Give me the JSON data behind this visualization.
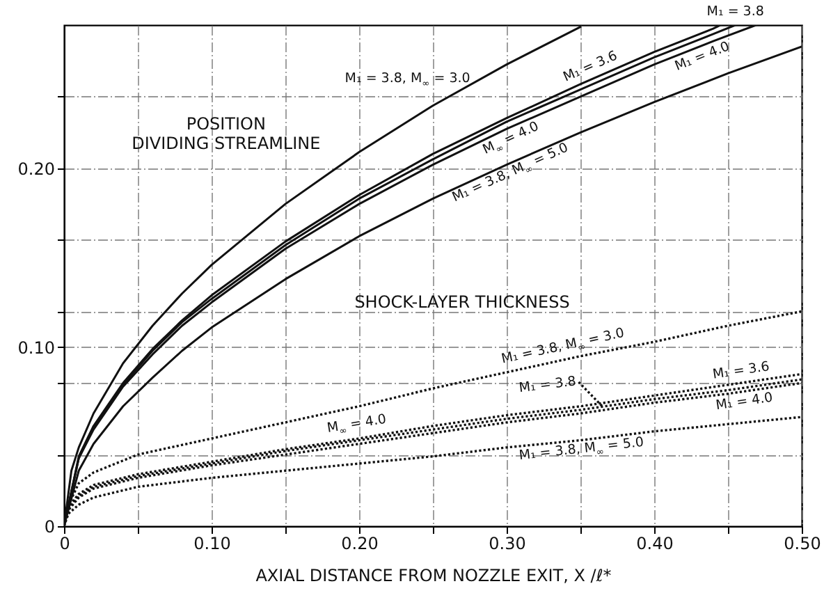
{
  "chart_data": {
    "type": "line",
    "xlabel": "AXIAL DISTANCE FROM NOZZLE EXIT, X /ℓ*",
    "xlim": [
      0,
      0.5
    ],
    "xticks": [
      0,
      {
        "value": 0.05,
        "label": null
      },
      {
        "value": 0.1,
        "label": "0.10"
      },
      {
        "value": 0.15,
        "label": null
      },
      {
        "value": 0.2,
        "label": "0.20"
      },
      {
        "value": 0.25,
        "label": null
      },
      {
        "value": 0.3,
        "label": "0.30"
      },
      {
        "value": 0.35,
        "label": null
      },
      {
        "value": 0.4,
        "label": "0.40"
      },
      {
        "value": 0.45,
        "label": null
      },
      {
        "value": 0.5,
        "label": "0.50"
      }
    ],
    "ylim": [
      0,
      0.28
    ],
    "yticks": [
      0,
      {
        "value": 0.04,
        "label": null
      },
      {
        "value": 0.08,
        "label": null
      },
      {
        "value": 0.1,
        "label": "0.10"
      },
      {
        "value": 0.12,
        "label": null
      },
      {
        "value": 0.16,
        "label": null
      },
      {
        "value": 0.2,
        "label": "0.20"
      },
      {
        "value": 0.24,
        "label": null
      }
    ],
    "grid": true,
    "series": [
      {
        "name": "M₁ = 3.8, M$_{∞}$ = 3.0",
        "color": "#111111",
        "line_style": "solid",
        "x": [
          0,
          0.005,
          0.01,
          0.02,
          0.04,
          0.06,
          0.08,
          0.1,
          0.15,
          0.2,
          0.25,
          0.3,
          0.35
        ],
        "values": [
          0,
          0.031,
          0.044,
          0.063,
          0.091,
          0.112,
          0.13,
          0.146,
          0.18,
          0.209,
          0.235,
          0.258,
          0.279
        ]
      },
      {
        "name": "M₁ = 3.6",
        "color": "#111111",
        "line_style": "solid",
        "x": [
          0,
          0.01,
          0.02,
          0.04,
          0.06,
          0.08,
          0.1,
          0.15,
          0.2,
          0.25,
          0.3,
          0.35,
          0.4,
          0.44,
          0.445
        ],
        "values": [
          0,
          0.039,
          0.056,
          0.08,
          0.099,
          0.115,
          0.129,
          0.159,
          0.185,
          0.208,
          0.228,
          0.247,
          0.265,
          0.278,
          0.28
        ]
      },
      {
        "name": "M₁ = 3.8",
        "color": "#111111",
        "line_style": "solid",
        "x": [
          0,
          0.01,
          0.02,
          0.04,
          0.06,
          0.08,
          0.1,
          0.15,
          0.2,
          0.25,
          0.3,
          0.35,
          0.4,
          0.44,
          0.455
        ],
        "values": [
          0,
          0.038,
          0.055,
          0.079,
          0.098,
          0.114,
          0.127,
          0.157,
          0.183,
          0.205,
          0.226,
          0.244,
          0.262,
          0.275,
          0.28
        ]
      },
      {
        "name": "M₁ = 4.0",
        "color": "#111111",
        "line_style": "solid",
        "x": [
          0,
          0.01,
          0.02,
          0.04,
          0.06,
          0.08,
          0.1,
          0.15,
          0.2,
          0.25,
          0.3,
          0.35,
          0.4,
          0.44,
          0.469
        ],
        "values": [
          0,
          0.038,
          0.054,
          0.078,
          0.096,
          0.112,
          0.125,
          0.155,
          0.18,
          0.202,
          0.222,
          0.24,
          0.258,
          0.271,
          0.28
        ]
      },
      {
        "name": "M₁ = 3.8, M$_{∞}$ = 5.0",
        "color": "#111111",
        "line_style": "solid",
        "x": [
          0,
          0.01,
          0.02,
          0.04,
          0.06,
          0.08,
          0.1,
          0.15,
          0.2,
          0.25,
          0.3,
          0.35,
          0.4,
          0.45,
          0.5
        ],
        "values": [
          0,
          0.031,
          0.046,
          0.067,
          0.083,
          0.098,
          0.111,
          0.138,
          0.162,
          0.183,
          0.202,
          0.22,
          0.237,
          0.253,
          0.268
        ]
      },
      {
        "name": "M₁ = 3.8, M$_{∞}$ = 3.0",
        "color": "#111111",
        "line_style": "dotted",
        "x": [
          0,
          0.003,
          0.01,
          0.02,
          0.05,
          0.1,
          0.15,
          0.2,
          0.25,
          0.3,
          0.35,
          0.4,
          0.45,
          0.5
        ],
        "values": [
          0,
          0.012,
          0.024,
          0.03,
          0.04,
          0.049,
          0.058,
          0.067,
          0.077,
          0.086,
          0.095,
          0.103,
          0.112,
          0.12
        ]
      },
      {
        "name": "M₁ = 3.6",
        "color": "#111111",
        "line_style": "dotted",
        "x": [
          0,
          0.003,
          0.01,
          0.02,
          0.05,
          0.1,
          0.15,
          0.2,
          0.25,
          0.3,
          0.35,
          0.4,
          0.45,
          0.5
        ],
        "values": [
          0,
          0.011,
          0.018,
          0.023,
          0.029,
          0.036,
          0.043,
          0.049,
          0.056,
          0.062,
          0.067,
          0.073,
          0.079,
          0.085
        ]
      },
      {
        "name": "M₁ = 3.8",
        "color": "#111111",
        "line_style": "dotted",
        "x": [
          0,
          0.003,
          0.01,
          0.02,
          0.05,
          0.1,
          0.15,
          0.2,
          0.25,
          0.3,
          0.35,
          0.4,
          0.45,
          0.5
        ],
        "values": [
          0,
          0.01,
          0.017,
          0.022,
          0.028,
          0.035,
          0.042,
          0.048,
          0.054,
          0.06,
          0.065,
          0.071,
          0.076,
          0.082
        ]
      },
      {
        "name": "M₁ = 4.0",
        "color": "#111111",
        "line_style": "dotted",
        "x": [
          0,
          0.003,
          0.01,
          0.02,
          0.05,
          0.1,
          0.15,
          0.2,
          0.25,
          0.3,
          0.35,
          0.4,
          0.45,
          0.5
        ],
        "values": [
          0,
          0.009,
          0.016,
          0.021,
          0.027,
          0.034,
          0.04,
          0.046,
          0.052,
          0.058,
          0.063,
          0.069,
          0.074,
          0.08
        ]
      },
      {
        "name": "M₁ = 3.8, M$_{∞}$ = 5.0",
        "color": "#111111",
        "line_style": "dotted",
        "x": [
          0,
          0.003,
          0.01,
          0.02,
          0.05,
          0.1,
          0.15,
          0.2,
          0.25,
          0.3,
          0.35,
          0.4,
          0.45,
          0.5
        ],
        "values": [
          0,
          0.007,
          0.012,
          0.016,
          0.022,
          0.027,
          0.031,
          0.035,
          0.039,
          0.044,
          0.048,
          0.053,
          0.057,
          0.061
        ]
      }
    ],
    "annotations": [
      "POSITION\nDIVIDING STREAMLINE",
      "SHOCK-LAYER THICKNESS",
      {
        "text": "M$_{∞}$ = 4.0",
        "x": 0.3,
        "y": 0.222
      },
      {
        "text": "M$_{∞}$ = 4.0",
        "x": 0.2,
        "y": 0.049
      }
    ]
  }
}
